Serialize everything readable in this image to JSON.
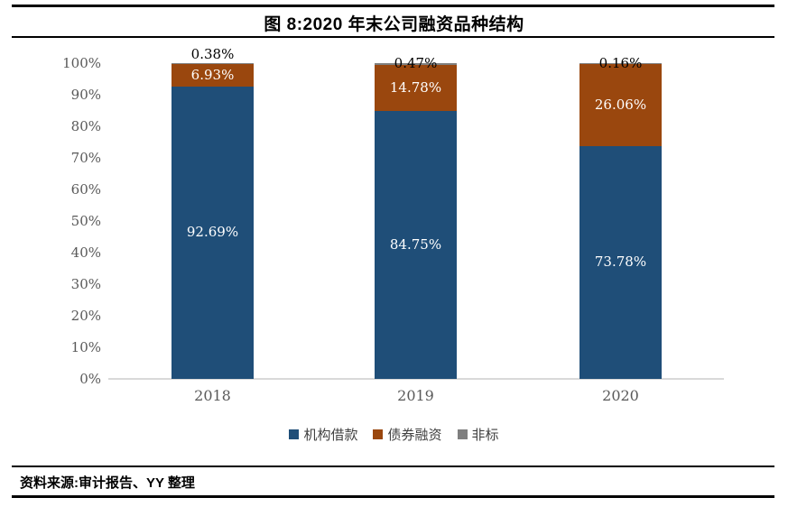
{
  "title": "图 8:2020 年末公司融资品种结构",
  "source_note": "资料来源:审计报告、YY 整理",
  "colors": {
    "loan_blue": "#1F4E78",
    "bond_brown": "#9A470E",
    "nonstandard_gray": "#7F7F7F",
    "axis_line": "#D9D9D9",
    "axis_text": "#595959",
    "rule_black": "#000000"
  },
  "chart_data": {
    "type": "bar",
    "stacked": true,
    "unit": "%",
    "title": "图 8:2020 年末公司融资品种结构",
    "categories": [
      "2018",
      "2019",
      "2020"
    ],
    "series": [
      {
        "name": "机构借款",
        "color": "#1F4E78",
        "values": [
          92.69,
          84.75,
          73.78
        ],
        "label_color": "#FFFFFF",
        "label_positions": [
          "center",
          "center",
          "center"
        ]
      },
      {
        "name": "债券融资",
        "color": "#9A470E",
        "values": [
          6.93,
          14.78,
          26.06
        ],
        "label_color": "#FFFFFF",
        "label_positions": [
          "center",
          "center",
          "center"
        ]
      },
      {
        "name": "非标",
        "color": "#7F7F7F",
        "values": [
          0.38,
          0.47,
          0.16
        ],
        "label_color": "#000000",
        "label_positions": [
          "above",
          "overlap",
          "overlap"
        ]
      }
    ],
    "y_ticks": [
      "100%",
      "90%",
      "80%",
      "70%",
      "60%",
      "50%",
      "40%",
      "30%",
      "20%",
      "10%",
      "0%"
    ],
    "ylim": [
      0,
      100
    ],
    "grid": false,
    "legend_position": "bottom",
    "data_labels": true
  }
}
